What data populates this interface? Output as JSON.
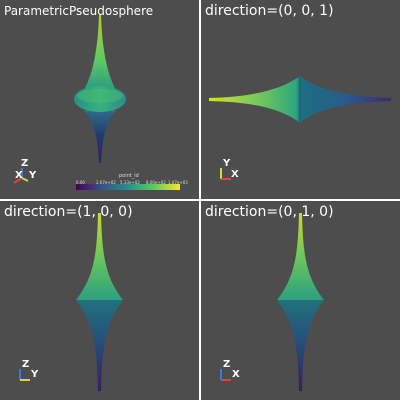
{
  "viewports": [
    {
      "id": "top-left",
      "title": "ParametricPseudosphere",
      "axes": {
        "up": "Z",
        "left": "X",
        "right": "Y"
      }
    },
    {
      "id": "top-right",
      "title": "direction=(0, 0, 1)",
      "axes": {
        "up": "Y",
        "right": "X"
      }
    },
    {
      "id": "bottom-left",
      "title": "direction=(1, 0, 0)",
      "axes": {
        "up": "Z",
        "right": "Y"
      }
    },
    {
      "id": "bottom-right",
      "title": "direction=(0, 1, 0)",
      "axes": {
        "up": "Z",
        "right": "X"
      }
    }
  ],
  "scalar_bar": {
    "title": "point_id",
    "ticks": [
      "0.00",
      "2.67e+02",
      "5.33e+02",
      "8.00e+02",
      "1.07e+03"
    ]
  },
  "colors": {
    "background": "#4d4d4d",
    "border": "#ffffff",
    "axis_x": "#e0443a",
    "axis_y": "#d8d83c",
    "axis_z": "#3a7ad8",
    "colormap": [
      "#440154",
      "#3b528b",
      "#21918c",
      "#5ec962",
      "#fde725"
    ]
  }
}
